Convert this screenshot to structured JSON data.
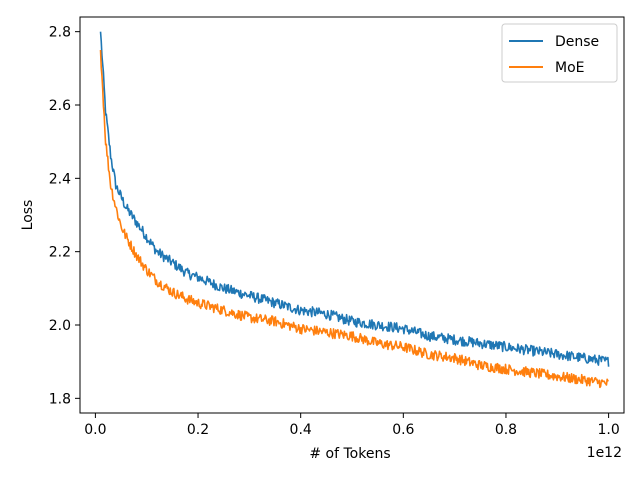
{
  "chart_data": {
    "type": "line",
    "title": "",
    "xlabel": "# of Tokens",
    "ylabel": "Loss",
    "x_offset_label": "1e12",
    "xlim": [
      -0.03,
      1.03
    ],
    "ylim": [
      1.76,
      2.84
    ],
    "x_ticks": [
      0.0,
      0.2,
      0.4,
      0.6,
      0.8,
      1.0
    ],
    "x_tick_labels": [
      "0.0",
      "0.2",
      "0.4",
      "0.6",
      "0.8",
      "1.0"
    ],
    "y_ticks": [
      1.8,
      2.0,
      2.2,
      2.4,
      2.6,
      2.8
    ],
    "y_tick_labels": [
      "1.8",
      "2.0",
      "2.2",
      "2.4",
      "2.6",
      "2.8"
    ],
    "grid": false,
    "legend_position": "top-right",
    "x": [
      0.01,
      0.02,
      0.03,
      0.04,
      0.05,
      0.06,
      0.08,
      0.1,
      0.12,
      0.15,
      0.18,
      0.2,
      0.25,
      0.3,
      0.35,
      0.4,
      0.45,
      0.5,
      0.55,
      0.6,
      0.65,
      0.7,
      0.75,
      0.8,
      0.85,
      0.9,
      0.95,
      1.0
    ],
    "series": [
      {
        "name": "Dense",
        "color": "#1f77b4",
        "values": [
          2.8,
          2.58,
          2.46,
          2.38,
          2.35,
          2.32,
          2.28,
          2.24,
          2.2,
          2.17,
          2.14,
          2.13,
          2.1,
          2.08,
          2.06,
          2.04,
          2.03,
          2.01,
          2.0,
          1.99,
          1.97,
          1.96,
          1.95,
          1.94,
          1.93,
          1.92,
          1.91,
          1.9
        ]
      },
      {
        "name": "MoE",
        "color": "#ff7f0e",
        "values": [
          2.75,
          2.5,
          2.38,
          2.32,
          2.27,
          2.24,
          2.19,
          2.15,
          2.12,
          2.09,
          2.07,
          2.06,
          2.04,
          2.02,
          2.01,
          1.99,
          1.98,
          1.97,
          1.95,
          1.94,
          1.92,
          1.91,
          1.89,
          1.88,
          1.87,
          1.86,
          1.85,
          1.84
        ]
      }
    ]
  }
}
